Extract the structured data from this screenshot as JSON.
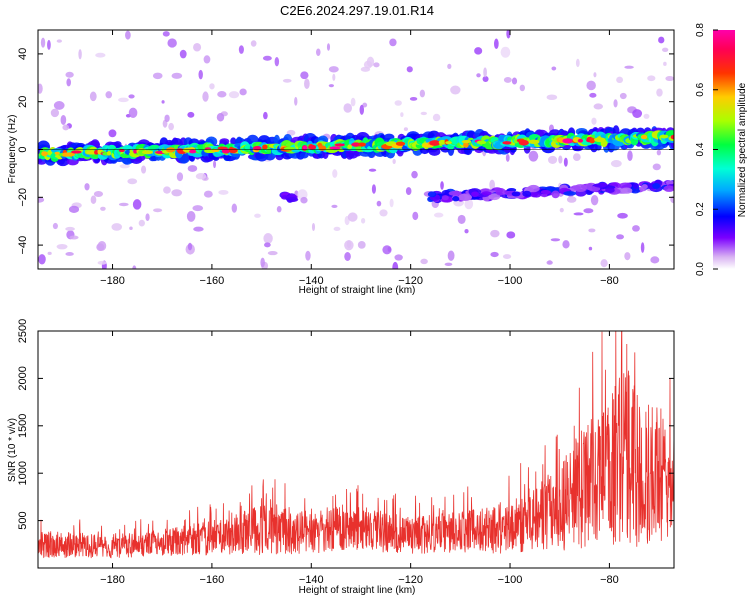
{
  "title": "C2E6.2024.297.19.01.R14",
  "chart_data": [
    {
      "type": "heatmap",
      "xlabel": "Height of straight line (km)",
      "ylabel": "Frequency (Hz)",
      "xlim": [
        -195,
        -67
      ],
      "ylim": [
        -50,
        50
      ],
      "xticks": [
        -180,
        -160,
        -140,
        -120,
        -100,
        -80
      ],
      "yticks": [
        -40,
        -20,
        0,
        20,
        40
      ],
      "colorbar": {
        "label": "Normalized spectral amplitude",
        "range": [
          0,
          0.8
        ],
        "ticks": [
          "0.0",
          "0.2",
          "0.4",
          "0.6",
          "0.8"
        ]
      },
      "features": [
        {
          "desc": "main band",
          "x_start": -195,
          "x_end": -67,
          "y_start": -2,
          "y_end": 5,
          "amplitude": 0.35
        },
        {
          "desc": "lower band",
          "x_start": -117,
          "x_end": -67,
          "y_start": -20,
          "y_end": -15,
          "amplitude": 0.1
        },
        {
          "desc": "blob",
          "x": -144,
          "y": -20,
          "amplitude": 0.1
        }
      ]
    },
    {
      "type": "line",
      "xlabel": "Height of straight line (km)",
      "ylabel": "SNR (10 * v/v)",
      "xlim": [
        -195,
        -67
      ],
      "ylim": [
        0,
        2500
      ],
      "xticks": [
        -180,
        -160,
        -140,
        -120,
        -100,
        -80
      ],
      "yticks": [
        500,
        1000,
        1500,
        2000,
        2500
      ],
      "series": [
        {
          "color": "#e8312d",
          "envelope_x": [
            -195,
            -180,
            -170,
            -160,
            -150,
            -140,
            -130,
            -120,
            -110,
            -100,
            -95,
            -90,
            -85,
            -80,
            -77,
            -75,
            -72,
            -70,
            -67
          ],
          "envelope_mean": [
            250,
            230,
            270,
            320,
            400,
            390,
            420,
            340,
            380,
            420,
            520,
            620,
            850,
            1000,
            1250,
            1100,
            950,
            1050,
            850
          ],
          "envelope_amp": [
            180,
            160,
            180,
            230,
            330,
            300,
            300,
            250,
            270,
            350,
            450,
            580,
            850,
            950,
            1300,
            1100,
            900,
            1000,
            700
          ]
        }
      ]
    }
  ]
}
